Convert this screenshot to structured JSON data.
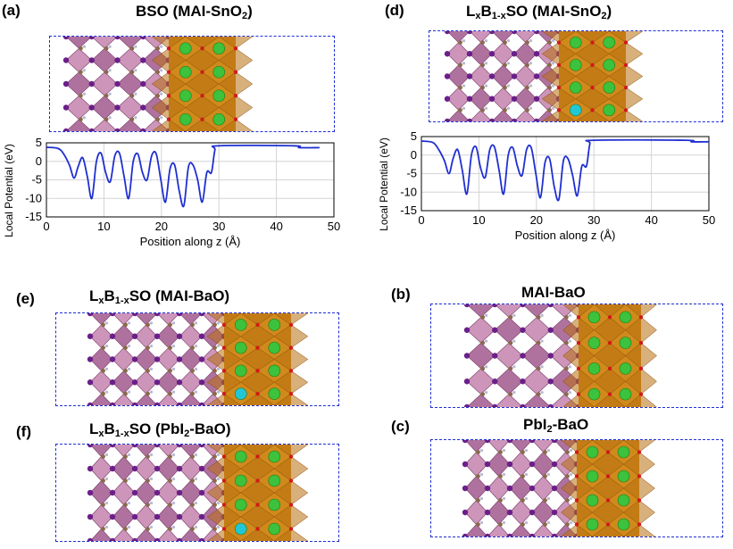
{
  "panels": {
    "a": {
      "label": "(a)",
      "title_main": "BSO (MAI-SnO",
      "title_sub": "2",
      "title_end": ")"
    },
    "d": {
      "label": "(d)",
      "t1": "L",
      "t1_sub": "x",
      "t2": "B",
      "t2_sub": "1-x",
      "t3": "SO (MAI-SnO",
      "t3_sub": "2",
      "t4": ")"
    },
    "e": {
      "label": "(e)",
      "t1": "L",
      "t1_sub": "x",
      "t2": "B",
      "t2_sub": "1-x",
      "t3": "SO (MAI-BaO)"
    },
    "b": {
      "label": "(b)",
      "title": "MAI-BaO"
    },
    "f": {
      "label": "(f)",
      "t1": "L",
      "t1_sub": "x",
      "t2": "B",
      "t2_sub": "1-x",
      "t3": "SO (PbI",
      "t3_sub": "2",
      "t4": "-BaO)"
    },
    "c": {
      "label": "(c)",
      "t1": "PbI",
      "t1_sub": "2",
      "t2": "-BaO"
    }
  },
  "colors": {
    "perovskite": "#c07aa8",
    "perovskite_dark": "#9b4f86",
    "oxide": "#d08a1c",
    "ba_atom": "#3cc23c",
    "la_atom": "#22c7d6",
    "i_atom": "#6a1f8a",
    "o_atom": "#d11a1a",
    "frame": "#1f2fd1",
    "curve": "#1f2fd1"
  },
  "chart_data": [
    {
      "type": "line",
      "panel": "a",
      "xlabel": "Position along z (Å)",
      "ylabel": "Local Potential (eV)",
      "xlim": [
        0,
        50
      ],
      "ylim": [
        -15,
        5
      ],
      "xticks": [
        0,
        10,
        20,
        30,
        40,
        50
      ],
      "yticks": [
        5,
        0,
        -5,
        -10,
        -15
      ],
      "grid": true,
      "series": [
        {
          "name": "potential",
          "x": [
            0,
            2,
            3,
            4,
            4.8,
            5.5,
            6.3,
            7.1,
            7.9,
            8.7,
            9.5,
            10.3,
            11.1,
            11.9,
            12.7,
            13.5,
            14.3,
            15.1,
            15.9,
            16.7,
            17.5,
            18.3,
            19.1,
            19.9,
            20.7,
            21.5,
            22.3,
            23.1,
            23.9,
            24.7,
            25.5,
            26.3,
            27.1,
            27.9,
            28.7,
            29.3,
            30,
            43,
            44,
            47.5
          ],
          "y": [
            3.8,
            3.5,
            2,
            -1,
            -4.5,
            -1.5,
            1,
            -4,
            -10,
            0,
            2.2,
            -3,
            -5.5,
            1.5,
            2.2,
            -4,
            -10,
            0,
            2,
            -3,
            -5,
            1.5,
            2,
            -5,
            -11,
            -2,
            -1,
            -8,
            -12,
            -1.5,
            -1,
            -5,
            -11,
            -3,
            -3,
            3,
            4.2,
            4.2,
            3.7,
            3.7
          ]
        }
      ]
    },
    {
      "type": "line",
      "panel": "d",
      "xlabel": "Position along z (Å)",
      "ylabel": "Local Potential (eV)",
      "xlim": [
        0,
        50
      ],
      "ylim": [
        -15,
        5
      ],
      "xticks": [
        0,
        10,
        20,
        30,
        40,
        50
      ],
      "yticks": [
        5,
        0,
        -5,
        -10,
        -15
      ],
      "grid": true,
      "series": [
        {
          "name": "potential",
          "x": [
            0,
            2,
            3,
            4,
            4.8,
            5.5,
            6.3,
            7.1,
            7.9,
            8.7,
            9.5,
            10.3,
            11.1,
            11.9,
            12.7,
            13.5,
            14.3,
            15.1,
            15.9,
            16.7,
            17.5,
            18.3,
            19.1,
            19.9,
            20.7,
            21.5,
            22.3,
            23.1,
            23.9,
            24.7,
            25.5,
            26.3,
            27.1,
            27.9,
            28.7,
            29.3,
            30,
            46,
            47,
            50
          ],
          "y": [
            3.8,
            3.4,
            1.5,
            -1.5,
            -5,
            -1,
            1.5,
            -4,
            -10.5,
            0,
            2.2,
            -3.5,
            -6,
            1.5,
            2.2,
            -4,
            -10.5,
            0,
            2,
            -3,
            -5.5,
            1.5,
            2,
            -5,
            -11.5,
            -2,
            -1,
            -8.5,
            -12,
            -1.5,
            -1,
            -5.5,
            -11,
            -3,
            -3,
            3,
            4,
            4,
            3.6,
            3.6
          ]
        }
      ]
    }
  ]
}
